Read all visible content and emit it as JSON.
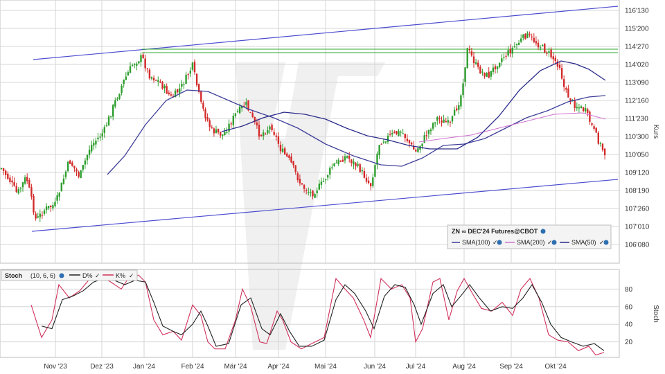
{
  "chart_data": [
    {
      "type": "candlestick",
      "title": "ZN ∞ DEC'24 Futures@CBOT",
      "ylabel": "Kurs",
      "y_ticks": [
        "106'080",
        "107'010",
        "107'260",
        "108'190",
        "109'120",
        "110'050",
        "110'300",
        "111'230",
        "112'160",
        "113'090",
        "114'020",
        "114'270",
        "115'200",
        "116'130"
      ],
      "ylim_label": [
        "105'300",
        "116'190"
      ],
      "indicators": [
        {
          "name": "SMA(100)",
          "color": "#3f3f9a"
        },
        {
          "name": "SMA(200)",
          "color": "#d070d0"
        },
        {
          "name": "SMA(50)",
          "color": "#2a2a8a"
        }
      ],
      "ohlc_close_sample": [
        [
          "Okt 2023",
          109.4
        ],
        [
          "Nov 2023",
          107.2
        ],
        [
          "Dez 2023",
          111.0
        ],
        [
          "Jan 2024",
          113.6
        ],
        [
          "Feb 2024",
          112.5
        ],
        [
          "Mär 2024",
          111.6
        ],
        [
          "Apr 2024",
          110.2
        ],
        [
          "Mai 2024",
          108.2
        ],
        [
          "Jun 2024",
          109.6
        ],
        [
          "Jul 2024",
          110.8
        ],
        [
          "Aug 2024",
          113.6
        ],
        [
          "Sep 2024",
          114.5
        ],
        [
          "Okt 2024",
          112.0
        ],
        [
          "Nov 2024",
          109.5
        ]
      ],
      "grid": true,
      "trend_channel": true,
      "resistance_levels": [
        "114'270",
        "114'200"
      ]
    },
    {
      "type": "line",
      "title": "Stoch",
      "params": "(10, 6, 6)",
      "series": [
        {
          "name": "D%",
          "color": "#222222"
        },
        {
          "name": "K%",
          "color": "#d0305a"
        }
      ],
      "y_ticks": [
        "20",
        "40",
        "60",
        "80"
      ],
      "ylabel": "Stoch",
      "ylim": [
        0,
        100
      ]
    }
  ],
  "x_ticks": [
    "Nov '23",
    "Dez '23",
    "Jan '24",
    "Feb '24",
    "Mär '24",
    "Apr '24",
    "Mai '24",
    "Jun '24",
    "Jul '24",
    "Aug '24",
    "Sep '24",
    "Okt '24"
  ],
  "colors": {
    "up": "#2e9e2e",
    "down": "#d42a2a",
    "grid": "#d6d6d6",
    "channel": "#4b4bd0",
    "support": "#2fa82f",
    "watermark": "#ececec"
  }
}
